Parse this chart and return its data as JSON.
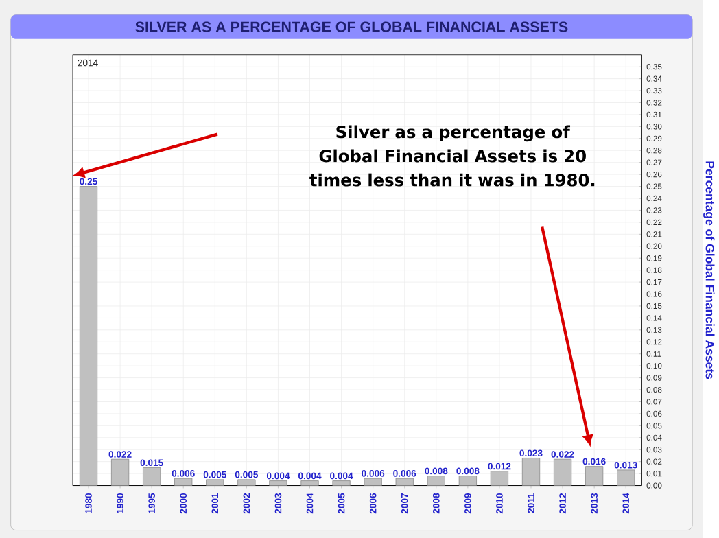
{
  "chart_data": {
    "type": "bar",
    "title": "SILVER AS A PERCENTAGE OF GLOBAL FINANCIAL ASSETS",
    "ylabel": "Percentage of Global Financial Assets",
    "categories": [
      "1980",
      "1990",
      "1995",
      "2000",
      "2001",
      "2002",
      "2003",
      "2004",
      "2005",
      "2006",
      "2007",
      "2008",
      "2009",
      "2010",
      "2011",
      "2012",
      "2013",
      "2014"
    ],
    "values": [
      0.25,
      0.022,
      0.015,
      0.006,
      0.005,
      0.005,
      0.004,
      0.004,
      0.004,
      0.006,
      0.006,
      0.008,
      0.008,
      0.012,
      0.023,
      0.022,
      0.016,
      0.013
    ],
    "color": "#c0c0c0",
    "data_labels": true,
    "ylim": [
      0,
      0.36
    ],
    "yticks": [
      {
        "value": 0,
        "label": "0.00"
      },
      0.01,
      0.02,
      0.03,
      0.04,
      0.05,
      0.06,
      0.07,
      0.08,
      0.09,
      {
        "value": 0.1,
        "label": "0.10"
      },
      0.11,
      0.12,
      0.13,
      0.14,
      0.15,
      0.16,
      0.17,
      0.18,
      0.19,
      {
        "value": 0.2,
        "label": "0.20"
      },
      0.21,
      0.22,
      0.23,
      0.24,
      0.25,
      0.26,
      0.27,
      0.28,
      0.29,
      {
        "value": 0.3,
        "label": "0.30"
      },
      0.31,
      0.32,
      0.33,
      0.34,
      0.35
    ],
    "grid": true,
    "annotations": [
      "2014",
      "Silver as a percentage of Global Financial Assets is 20 times less than it was in 1980."
    ]
  }
}
